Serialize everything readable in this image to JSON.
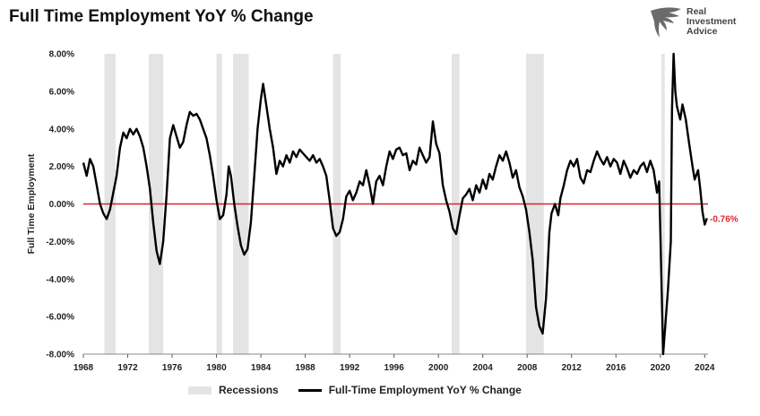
{
  "title": "Full Time Employment YoY % Change",
  "logo": {
    "line1": "Real",
    "line2": "Investment",
    "line3": "Advice"
  },
  "colors": {
    "line": "#000000",
    "recession": "#e4e4e4",
    "zero_line": "#d62728",
    "annotation": "#d62728"
  },
  "chart_data": {
    "type": "line",
    "title": "Full Time Employment YoY % Change",
    "xlabel": "",
    "ylabel": "Full Time Employment",
    "xlim": [
      1968,
      2024.3
    ],
    "ylim": [
      -8,
      8
    ],
    "y_ticks": [
      "8.00%",
      "6.00%",
      "4.00%",
      "2.00%",
      "0.00%",
      "-2.00%",
      "-4.00%",
      "-6.00%",
      "-8.00%"
    ],
    "y_tick_values": [
      8,
      6,
      4,
      2,
      0,
      -2,
      -4,
      -6,
      -8
    ],
    "x_ticks": [
      "1968",
      "1972",
      "1976",
      "1980",
      "1984",
      "1988",
      "1992",
      "1996",
      "2000",
      "2004",
      "2008",
      "2012",
      "2016",
      "2020",
      "2024"
    ],
    "x_tick_values": [
      1968,
      1972,
      1976,
      1980,
      1984,
      1988,
      1992,
      1996,
      2000,
      2004,
      2008,
      2012,
      2016,
      2020,
      2024
    ],
    "recessions": [
      [
        1969.9,
        1970.9
      ],
      [
        1973.9,
        1975.2
      ],
      [
        1980.0,
        1980.5
      ],
      [
        1981.5,
        1982.9
      ],
      [
        1990.5,
        1991.2
      ],
      [
        2001.2,
        2001.9
      ],
      [
        2007.9,
        2009.5
      ],
      [
        2020.1,
        2020.4
      ]
    ],
    "reference_line": {
      "y": 0,
      "color": "#d62728"
    },
    "annotation": {
      "text": "-0.76%",
      "x": 2023.3,
      "y": -0.76
    },
    "legend": [
      "Recessions",
      "Full-Time Employment YoY % Change"
    ],
    "series": [
      {
        "name": "Full-Time Employment YoY % Change",
        "points": [
          [
            1968.0,
            2.2
          ],
          [
            1968.3,
            1.5
          ],
          [
            1968.6,
            2.4
          ],
          [
            1968.9,
            2.0
          ],
          [
            1969.2,
            1.0
          ],
          [
            1969.5,
            0.0
          ],
          [
            1969.8,
            -0.5
          ],
          [
            1970.1,
            -0.8
          ],
          [
            1970.4,
            -0.3
          ],
          [
            1970.7,
            0.6
          ],
          [
            1971.0,
            1.5
          ],
          [
            1971.3,
            3.0
          ],
          [
            1971.6,
            3.8
          ],
          [
            1971.9,
            3.5
          ],
          [
            1972.2,
            4.0
          ],
          [
            1972.5,
            3.7
          ],
          [
            1972.8,
            4.0
          ],
          [
            1973.1,
            3.6
          ],
          [
            1973.4,
            3.0
          ],
          [
            1973.7,
            2.0
          ],
          [
            1974.0,
            0.8
          ],
          [
            1974.3,
            -1.0
          ],
          [
            1974.6,
            -2.5
          ],
          [
            1974.9,
            -3.2
          ],
          [
            1975.2,
            -2.0
          ],
          [
            1975.5,
            0.5
          ],
          [
            1975.8,
            3.5
          ],
          [
            1976.1,
            4.2
          ],
          [
            1976.4,
            3.6
          ],
          [
            1976.7,
            3.0
          ],
          [
            1977.0,
            3.3
          ],
          [
            1977.3,
            4.2
          ],
          [
            1977.6,
            4.9
          ],
          [
            1977.9,
            4.7
          ],
          [
            1978.2,
            4.8
          ],
          [
            1978.5,
            4.5
          ],
          [
            1978.8,
            4.0
          ],
          [
            1979.1,
            3.5
          ],
          [
            1979.4,
            2.6
          ],
          [
            1979.7,
            1.5
          ],
          [
            1980.0,
            0.2
          ],
          [
            1980.3,
            -0.8
          ],
          [
            1980.6,
            -0.6
          ],
          [
            1980.9,
            0.5
          ],
          [
            1981.1,
            2.0
          ],
          [
            1981.3,
            1.5
          ],
          [
            1981.6,
            0.0
          ],
          [
            1981.9,
            -1.2
          ],
          [
            1982.2,
            -2.2
          ],
          [
            1982.5,
            -2.7
          ],
          [
            1982.8,
            -2.4
          ],
          [
            1983.1,
            -1.0
          ],
          [
            1983.4,
            1.5
          ],
          [
            1983.7,
            4.0
          ],
          [
            1984.0,
            5.6
          ],
          [
            1984.2,
            6.4
          ],
          [
            1984.5,
            5.2
          ],
          [
            1984.8,
            4.0
          ],
          [
            1985.1,
            3.0
          ],
          [
            1985.4,
            1.6
          ],
          [
            1985.7,
            2.3
          ],
          [
            1986.0,
            2.0
          ],
          [
            1986.3,
            2.6
          ],
          [
            1986.6,
            2.2
          ],
          [
            1986.9,
            2.8
          ],
          [
            1987.2,
            2.5
          ],
          [
            1987.5,
            2.9
          ],
          [
            1987.8,
            2.7
          ],
          [
            1988.1,
            2.5
          ],
          [
            1988.4,
            2.3
          ],
          [
            1988.7,
            2.6
          ],
          [
            1989.0,
            2.2
          ],
          [
            1989.3,
            2.4
          ],
          [
            1989.6,
            2.0
          ],
          [
            1989.9,
            1.5
          ],
          [
            1990.2,
            0.2
          ],
          [
            1990.5,
            -1.3
          ],
          [
            1990.8,
            -1.7
          ],
          [
            1991.1,
            -1.5
          ],
          [
            1991.4,
            -0.8
          ],
          [
            1991.7,
            0.4
          ],
          [
            1992.0,
            0.7
          ],
          [
            1992.3,
            0.2
          ],
          [
            1992.6,
            0.6
          ],
          [
            1992.9,
            1.2
          ],
          [
            1993.2,
            1.0
          ],
          [
            1993.5,
            1.8
          ],
          [
            1993.8,
            1.0
          ],
          [
            1994.1,
            0.0
          ],
          [
            1994.4,
            1.2
          ],
          [
            1994.7,
            1.5
          ],
          [
            1995.0,
            1.0
          ],
          [
            1995.3,
            2.0
          ],
          [
            1995.6,
            2.8
          ],
          [
            1995.9,
            2.4
          ],
          [
            1996.2,
            2.9
          ],
          [
            1996.5,
            3.0
          ],
          [
            1996.8,
            2.6
          ],
          [
            1997.1,
            2.7
          ],
          [
            1997.4,
            1.8
          ],
          [
            1997.7,
            2.3
          ],
          [
            1998.0,
            2.1
          ],
          [
            1998.3,
            3.0
          ],
          [
            1998.6,
            2.6
          ],
          [
            1998.9,
            2.2
          ],
          [
            1999.2,
            2.5
          ],
          [
            1999.5,
            4.4
          ],
          [
            1999.8,
            3.2
          ],
          [
            2000.1,
            2.7
          ],
          [
            2000.4,
            1.0
          ],
          [
            2000.7,
            0.2
          ],
          [
            2001.0,
            -0.4
          ],
          [
            2001.3,
            -1.3
          ],
          [
            2001.6,
            -1.6
          ],
          [
            2001.9,
            -0.6
          ],
          [
            2002.2,
            0.3
          ],
          [
            2002.5,
            0.5
          ],
          [
            2002.8,
            0.8
          ],
          [
            2003.1,
            0.2
          ],
          [
            2003.4,
            1.0
          ],
          [
            2003.7,
            0.6
          ],
          [
            2004.0,
            1.3
          ],
          [
            2004.3,
            0.8
          ],
          [
            2004.6,
            1.6
          ],
          [
            2004.9,
            1.3
          ],
          [
            2005.2,
            2.0
          ],
          [
            2005.5,
            2.6
          ],
          [
            2005.8,
            2.3
          ],
          [
            2006.1,
            2.8
          ],
          [
            2006.4,
            2.2
          ],
          [
            2006.7,
            1.4
          ],
          [
            2007.0,
            1.8
          ],
          [
            2007.3,
            0.9
          ],
          [
            2007.6,
            0.4
          ],
          [
            2007.9,
            -0.3
          ],
          [
            2008.2,
            -1.5
          ],
          [
            2008.5,
            -3.0
          ],
          [
            2008.8,
            -5.5
          ],
          [
            2009.1,
            -6.5
          ],
          [
            2009.4,
            -6.9
          ],
          [
            2009.7,
            -5.0
          ],
          [
            2010.0,
            -1.5
          ],
          [
            2010.2,
            -0.5
          ],
          [
            2010.5,
            0.0
          ],
          [
            2010.8,
            -0.6
          ],
          [
            2011.0,
            0.3
          ],
          [
            2011.3,
            1.0
          ],
          [
            2011.6,
            1.8
          ],
          [
            2011.9,
            2.3
          ],
          [
            2012.2,
            2.0
          ],
          [
            2012.5,
            2.4
          ],
          [
            2012.8,
            1.4
          ],
          [
            2013.1,
            1.1
          ],
          [
            2013.4,
            1.8
          ],
          [
            2013.7,
            1.7
          ],
          [
            2014.0,
            2.3
          ],
          [
            2014.3,
            2.8
          ],
          [
            2014.6,
            2.4
          ],
          [
            2014.9,
            2.1
          ],
          [
            2015.2,
            2.5
          ],
          [
            2015.5,
            2.0
          ],
          [
            2015.8,
            2.4
          ],
          [
            2016.1,
            2.2
          ],
          [
            2016.4,
            1.6
          ],
          [
            2016.7,
            2.3
          ],
          [
            2017.0,
            1.9
          ],
          [
            2017.3,
            1.4
          ],
          [
            2017.6,
            1.8
          ],
          [
            2017.9,
            1.6
          ],
          [
            2018.2,
            2.0
          ],
          [
            2018.5,
            2.2
          ],
          [
            2018.8,
            1.7
          ],
          [
            2019.1,
            2.3
          ],
          [
            2019.4,
            1.8
          ],
          [
            2019.7,
            0.6
          ],
          [
            2019.9,
            1.2
          ],
          [
            2020.1,
            -4.0
          ],
          [
            2020.25,
            -8.0
          ],
          [
            2020.45,
            -6.5
          ],
          [
            2020.7,
            -4.5
          ],
          [
            2020.95,
            -2.0
          ],
          [
            2021.05,
            5.0
          ],
          [
            2021.2,
            8.0
          ],
          [
            2021.35,
            6.0
          ],
          [
            2021.5,
            5.2
          ],
          [
            2021.8,
            4.5
          ],
          [
            2022.0,
            5.3
          ],
          [
            2022.3,
            4.5
          ],
          [
            2022.6,
            3.2
          ],
          [
            2022.9,
            2.0
          ],
          [
            2023.1,
            1.3
          ],
          [
            2023.4,
            1.8
          ],
          [
            2023.6,
            0.8
          ],
          [
            2023.8,
            -0.4
          ],
          [
            2024.0,
            -1.1
          ],
          [
            2024.2,
            -0.76
          ]
        ]
      }
    ]
  }
}
